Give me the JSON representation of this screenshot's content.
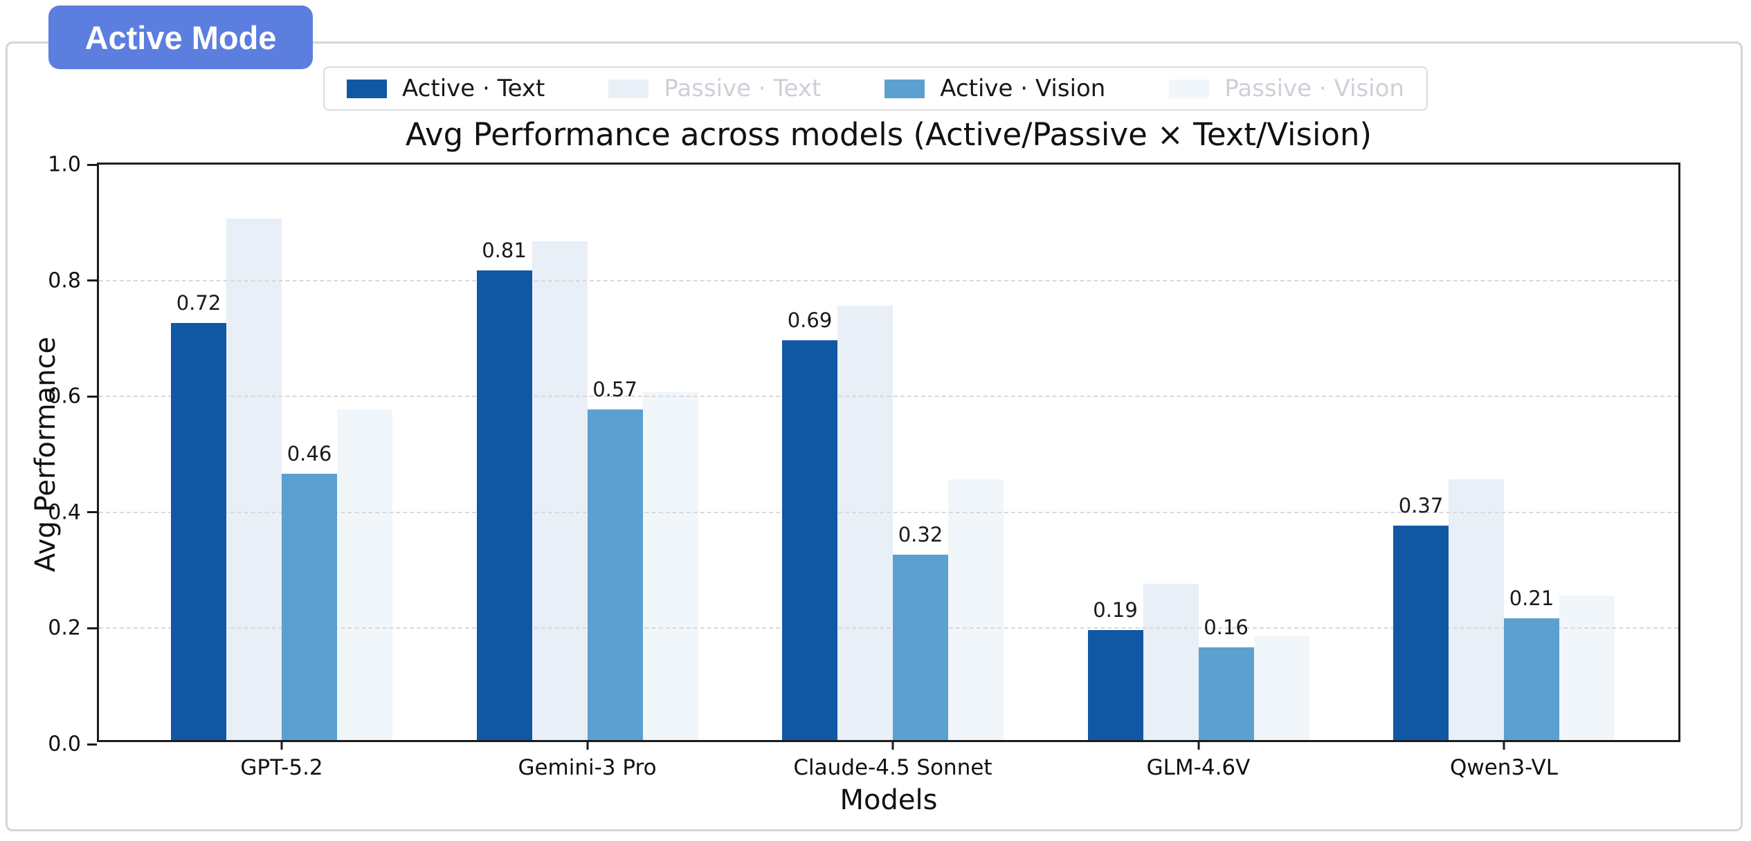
{
  "badge": {
    "label": "Active Mode",
    "color": "#5b7edf"
  },
  "chart_data": {
    "type": "bar",
    "title": "Avg Performance across models (Active/Passive × Text/Vision)",
    "xlabel": "Models",
    "ylabel": "Avg Performance",
    "ylim": [
      0.0,
      1.0
    ],
    "yticks": [
      "0.0",
      "0.2",
      "0.4",
      "0.6",
      "0.8",
      "1.0"
    ],
    "grid": "horizontal-dashed",
    "legend_position": "top-center",
    "categories": [
      "GPT-5.2",
      "Gemini-3 Pro",
      "Claude-4.5 Sonnet",
      "GLM-4.6V",
      "Qwen3-VL"
    ],
    "series": [
      {
        "name": "Active · Text",
        "color": "#1158a4",
        "muted": false,
        "show_labels": true,
        "values": [
          0.72,
          0.81,
          0.69,
          0.19,
          0.37
        ],
        "labels": [
          "0.72",
          "0.81",
          "0.69",
          "0.19",
          "0.37"
        ]
      },
      {
        "name": "Passive · Text",
        "color": "#e8eff6",
        "muted": true,
        "show_labels": false,
        "values": [
          0.9,
          0.86,
          0.75,
          0.27,
          0.45
        ],
        "labels": []
      },
      {
        "name": "Active · Vision",
        "color": "#5ca0d0",
        "muted": false,
        "show_labels": true,
        "values": [
          0.46,
          0.57,
          0.32,
          0.16,
          0.21
        ],
        "labels": [
          "0.46",
          "0.57",
          "0.32",
          "0.16",
          "0.21"
        ]
      },
      {
        "name": "Passive · Vision",
        "color": "#f1f6fa",
        "muted": true,
        "show_labels": false,
        "values": [
          0.57,
          0.6,
          0.45,
          0.18,
          0.25
        ],
        "labels": []
      }
    ],
    "legend_muted_text_color": "#ccd1d7",
    "legend_text_color": "#16181a"
  }
}
